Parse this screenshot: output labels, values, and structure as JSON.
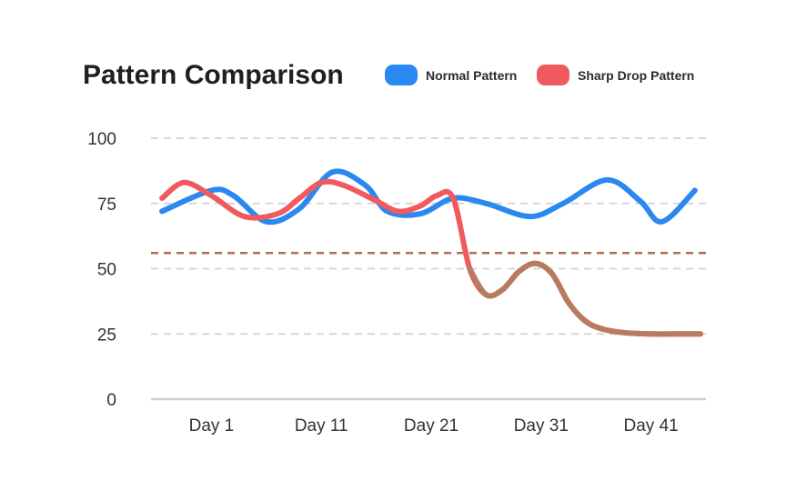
{
  "chart_data": {
    "type": "line",
    "title": "Pattern Comparison",
    "xlabel": "",
    "ylabel": "",
    "ylim": [
      0,
      100
    ],
    "yticks": [
      0,
      25,
      50,
      75,
      100
    ],
    "xticks": [
      {
        "label": "Day 1",
        "x": 1
      },
      {
        "label": "Day 11",
        "x": 11
      },
      {
        "label": "Day 21",
        "x": 21
      },
      {
        "label": "Day 31",
        "x": 31
      },
      {
        "label": "Day 41",
        "x": 41
      }
    ],
    "xlim": [
      -4.5,
      46
    ],
    "grid": true,
    "legend_position": "top-right",
    "series": [
      {
        "name": "Normal Pattern",
        "color": "#2b88f0",
        "points": [
          [
            -3.5,
            72
          ],
          [
            1,
            80
          ],
          [
            3,
            78
          ],
          [
            6,
            68
          ],
          [
            9,
            73
          ],
          [
            12,
            87
          ],
          [
            15,
            82
          ],
          [
            17,
            72
          ],
          [
            20,
            71
          ],
          [
            23,
            77
          ],
          [
            26,
            75
          ],
          [
            30,
            70
          ],
          [
            33,
            75
          ],
          [
            37,
            84
          ],
          [
            40,
            76
          ],
          [
            42,
            68
          ],
          [
            45,
            80
          ]
        ]
      },
      {
        "name": "Sharp Drop Pattern",
        "color": "#f05a5e",
        "points": [
          [
            -3.5,
            77
          ],
          [
            -1.5,
            83
          ],
          [
            1,
            78
          ],
          [
            4,
            70
          ],
          [
            7,
            71
          ],
          [
            9,
            77
          ],
          [
            11,
            83
          ],
          [
            13,
            82
          ],
          [
            16,
            76
          ],
          [
            18,
            72
          ],
          [
            20,
            74
          ],
          [
            21.5,
            78
          ],
          [
            23,
            77
          ],
          [
            24.5,
            50
          ],
          [
            26,
            40
          ],
          [
            27.5,
            42
          ],
          [
            29,
            49
          ],
          [
            30.5,
            52
          ],
          [
            32,
            48
          ],
          [
            33.5,
            37
          ],
          [
            35,
            30
          ],
          [
            36.5,
            27
          ],
          [
            38.5,
            25.5
          ],
          [
            41,
            25
          ],
          [
            43,
            25
          ],
          [
            45.5,
            25
          ]
        ]
      }
    ],
    "reference_line": {
      "y": 56,
      "color": "#b07050"
    },
    "blend_color": "#b08060"
  }
}
